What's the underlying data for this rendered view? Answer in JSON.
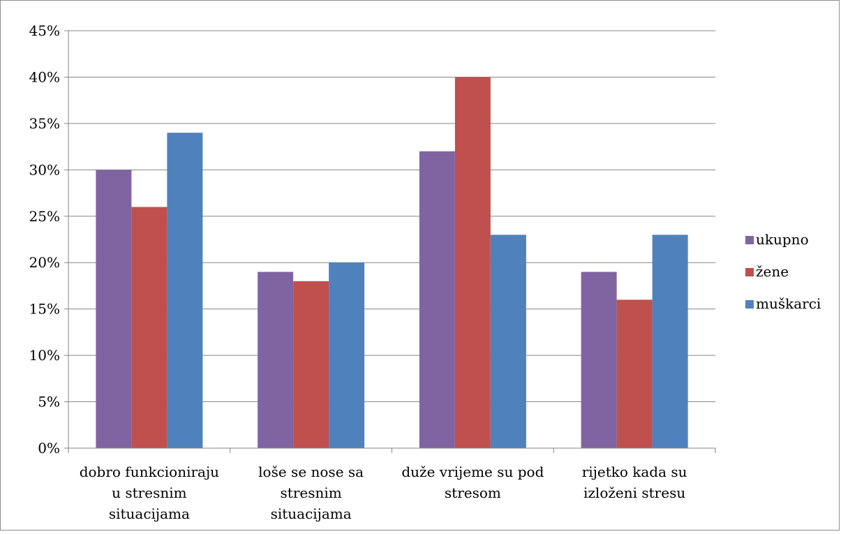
{
  "chart_data": {
    "type": "bar",
    "categories": [
      [
        "dobro funkcioniraju",
        "u stresnim",
        "situacijama"
      ],
      [
        "loše se nose sa",
        "stresnim",
        "situacijama"
      ],
      [
        "duže vrijeme su pod",
        "stresom"
      ],
      [
        "rijetko kada su",
        "izloženi stresu"
      ]
    ],
    "series": [
      {
        "name": "ukupno",
        "color": "#8064a2",
        "values": [
          30,
          19,
          32,
          19
        ]
      },
      {
        "name": "žene",
        "color": "#c0504d",
        "values": [
          26,
          18,
          40,
          16
        ]
      },
      {
        "name": "muškarci",
        "color": "#4f81bd",
        "values": [
          34,
          20,
          23,
          23
        ]
      }
    ],
    "ylim": [
      0,
      45
    ],
    "yticks": [
      "0%",
      "5%",
      "10%",
      "15%",
      "20%",
      "25%",
      "30%",
      "35%",
      "40%",
      "45%"
    ],
    "grid": true,
    "legend_position": "right"
  }
}
